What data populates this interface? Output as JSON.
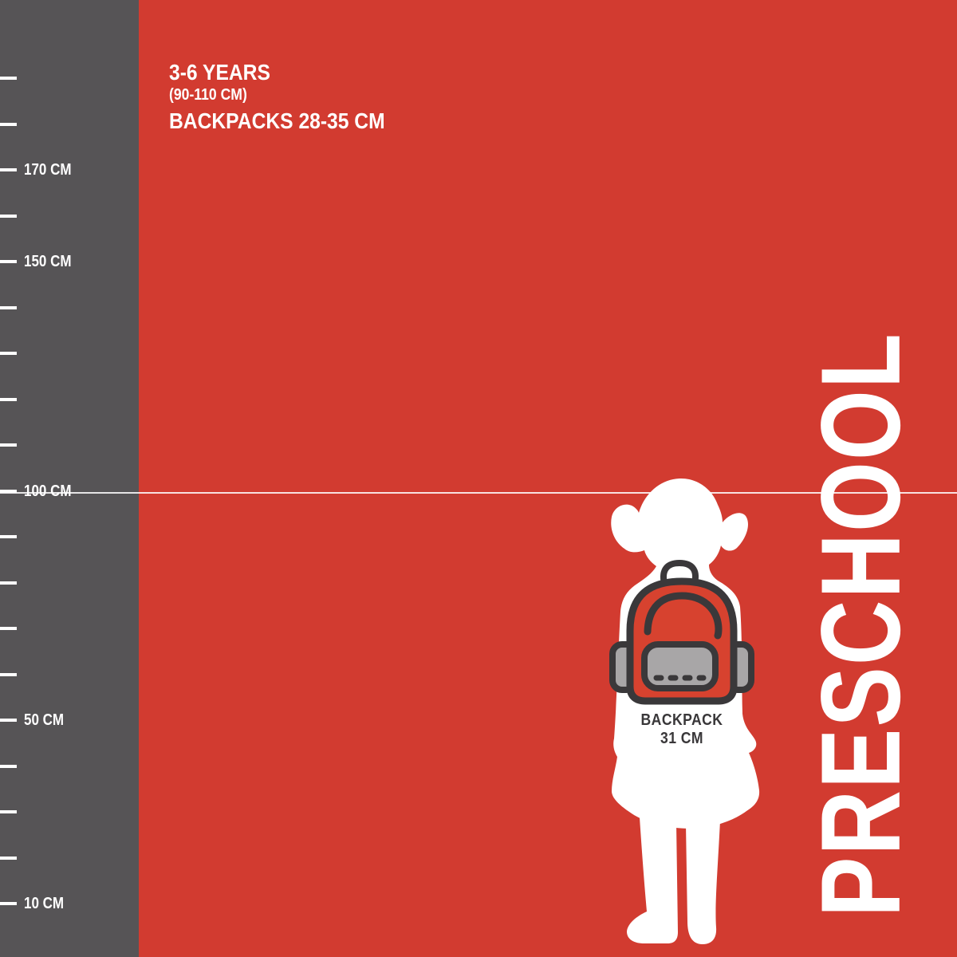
{
  "colors": {
    "background_red": "#d23b30",
    "ruler_gray": "#565456",
    "text_white": "#ffffff",
    "reference_line_white": "rgba(255,255,255,0.85)",
    "icon_outline_dark": "#3a383a",
    "icon_pocket_gray": "#a8a6a7",
    "icon_body_red": "#d7422f",
    "caption_dark": "#393739"
  },
  "header": {
    "age_range": "3-6 YEARS",
    "height_range": "(90-110 CM)",
    "backpack_sizes": "BACKPACKS 28-35 CM"
  },
  "ruler": {
    "unit": "CM",
    "min_cm": 10,
    "max_cm": 190,
    "step_cm": 10,
    "labels": [
      {
        "cm": 170,
        "text": "170 CM"
      },
      {
        "cm": 150,
        "text": "150 CM"
      },
      {
        "cm": 100,
        "text": "100 CM"
      },
      {
        "cm": 50,
        "text": "50 CM"
      },
      {
        "cm": 10,
        "text": "10 CM"
      }
    ]
  },
  "figure": {
    "silhouette": "preschool-girl-with-backpack",
    "backpack_label_line1": "BACKPACK",
    "backpack_label_line2": "31 CM"
  },
  "category_label": "PRESCHOOL",
  "chart_data": {
    "type": "ruler-infographic",
    "unit": "CM",
    "ruler_tick_step_cm": 10,
    "ruler_tick_range_cm": [
      10,
      190
    ],
    "ruler_labeled_ticks_cm": [
      170,
      150,
      100,
      50,
      10
    ],
    "reference_line_cm": 100,
    "age_range_years": "3-6",
    "child_height_range_cm": [
      90,
      110
    ],
    "backpack_size_range_cm": [
      28,
      35
    ],
    "backpack_shown_size_cm": 31,
    "stage": "PRESCHOOL"
  }
}
